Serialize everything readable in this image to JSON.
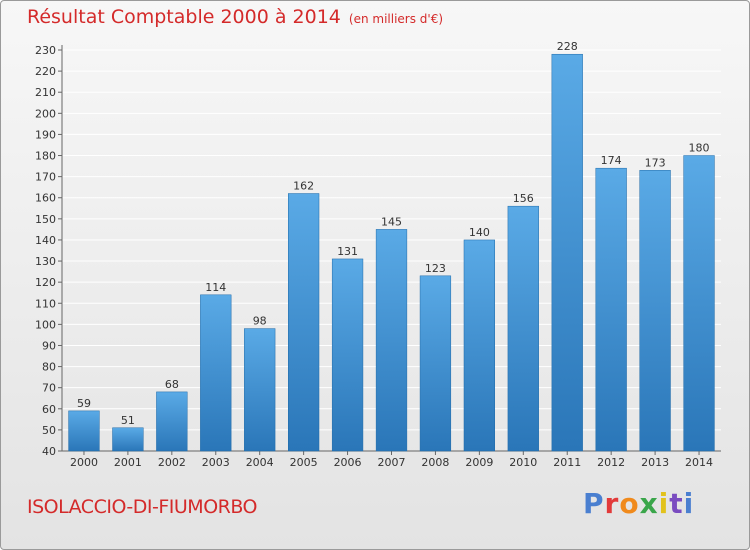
{
  "header": {
    "title": "Résultat Comptable 2000 à 2014",
    "subtitle": "(en milliers d'€)"
  },
  "footer": {
    "commune": "ISOLACCIO-DI-FIUMORBO",
    "logo_text": "Proxiti"
  },
  "colors": {
    "bar_light": "#5aaae6",
    "bar_dark": "#2a76b8",
    "title": "#d42a2a",
    "grid": "#ffffff"
  },
  "chart_data": {
    "type": "bar",
    "title": "Résultat Comptable 2000 à 2014",
    "ylabel": "(en milliers d'€)",
    "xlabel": "",
    "categories": [
      "2000",
      "2001",
      "2002",
      "2003",
      "2004",
      "2005",
      "2006",
      "2007",
      "2008",
      "2009",
      "2010",
      "2011",
      "2012",
      "2013",
      "2014"
    ],
    "values": [
      59,
      51,
      68,
      114,
      98,
      162,
      131,
      145,
      123,
      140,
      156,
      228,
      174,
      173,
      180
    ],
    "ylim": [
      40,
      230
    ],
    "yticks": [
      40,
      50,
      60,
      70,
      80,
      90,
      100,
      110,
      120,
      130,
      140,
      150,
      160,
      170,
      180,
      190,
      200,
      210,
      220,
      230
    ],
    "grid": true
  }
}
